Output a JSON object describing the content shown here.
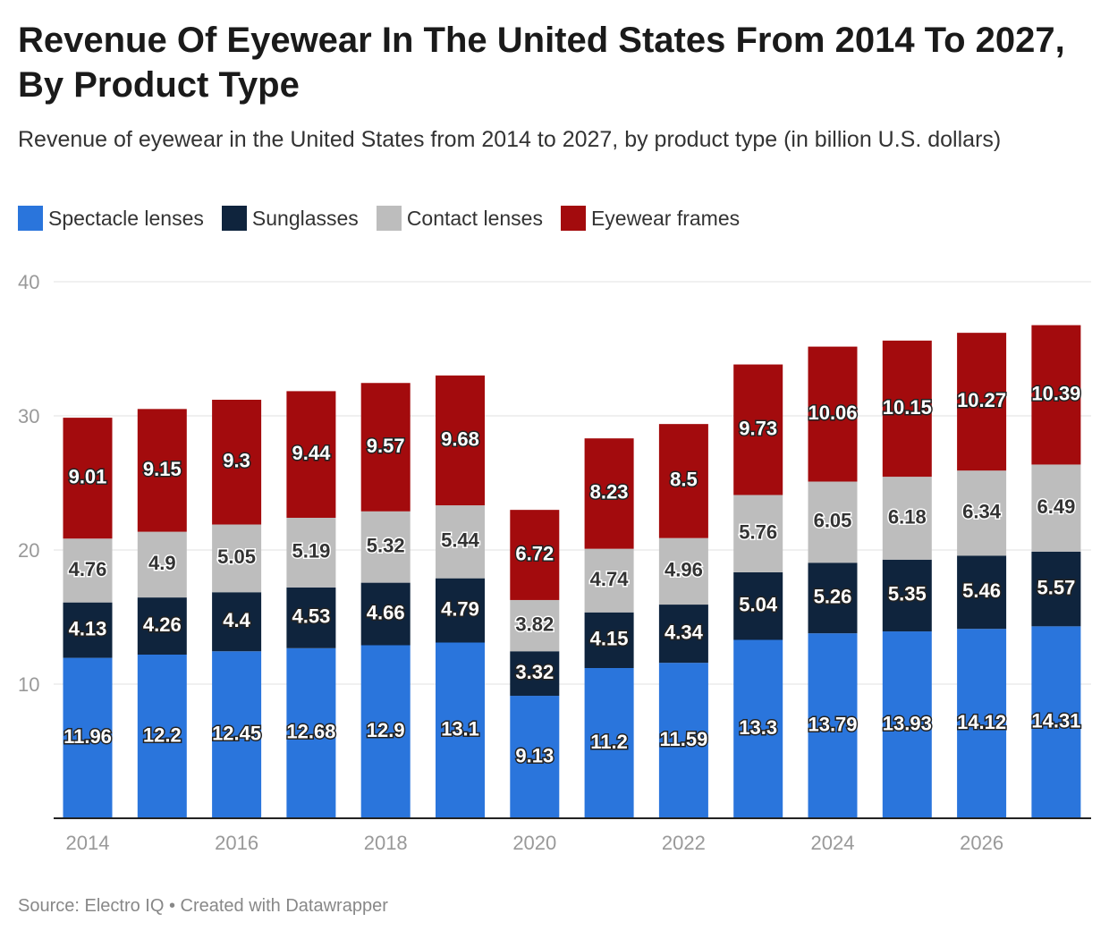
{
  "title": "Revenue Of Eyewear In The United States From 2014 To 2027, By Product Type",
  "subtitle": "Revenue of eyewear in the United States from 2014 to 2027, by product type (in billion U.S. dollars)",
  "source": "Source: Electro IQ • Created with Datawrapper",
  "chart_data": {
    "type": "bar",
    "stacked": true,
    "categories": [
      "2014",
      "2015",
      "2016",
      "2017",
      "2018",
      "2019",
      "2020",
      "2021",
      "2022",
      "2023",
      "2024",
      "2025",
      "2026",
      "2027"
    ],
    "x_tick_labels": [
      "2014",
      "2016",
      "2018",
      "2020",
      "2022",
      "2024",
      "2026"
    ],
    "y_ticks": [
      10,
      20,
      30,
      40
    ],
    "ylim": [
      0,
      40
    ],
    "grid": true,
    "legend_position": "top-left",
    "series": [
      {
        "name": "Spectacle lenses",
        "color": "#2a75dc",
        "values": [
          11.96,
          12.2,
          12.45,
          12.68,
          12.9,
          13.1,
          9.13,
          11.2,
          11.59,
          13.3,
          13.79,
          13.93,
          14.12,
          14.31
        ]
      },
      {
        "name": "Sunglasses",
        "color": "#0f243d",
        "values": [
          4.13,
          4.26,
          4.4,
          4.53,
          4.66,
          4.79,
          3.32,
          4.15,
          4.34,
          5.04,
          5.26,
          5.35,
          5.46,
          5.57
        ]
      },
      {
        "name": "Contact lenses",
        "color": "#bdbdbd",
        "values": [
          4.76,
          4.9,
          5.05,
          5.19,
          5.32,
          5.44,
          3.82,
          4.74,
          4.96,
          5.76,
          6.05,
          6.18,
          6.34,
          6.49
        ]
      },
      {
        "name": "Eyewear frames",
        "color": "#a30b0d",
        "values": [
          9.01,
          9.15,
          9.3,
          9.44,
          9.57,
          9.68,
          6.72,
          8.23,
          8.5,
          9.73,
          10.06,
          10.15,
          10.27,
          10.39
        ]
      }
    ]
  }
}
